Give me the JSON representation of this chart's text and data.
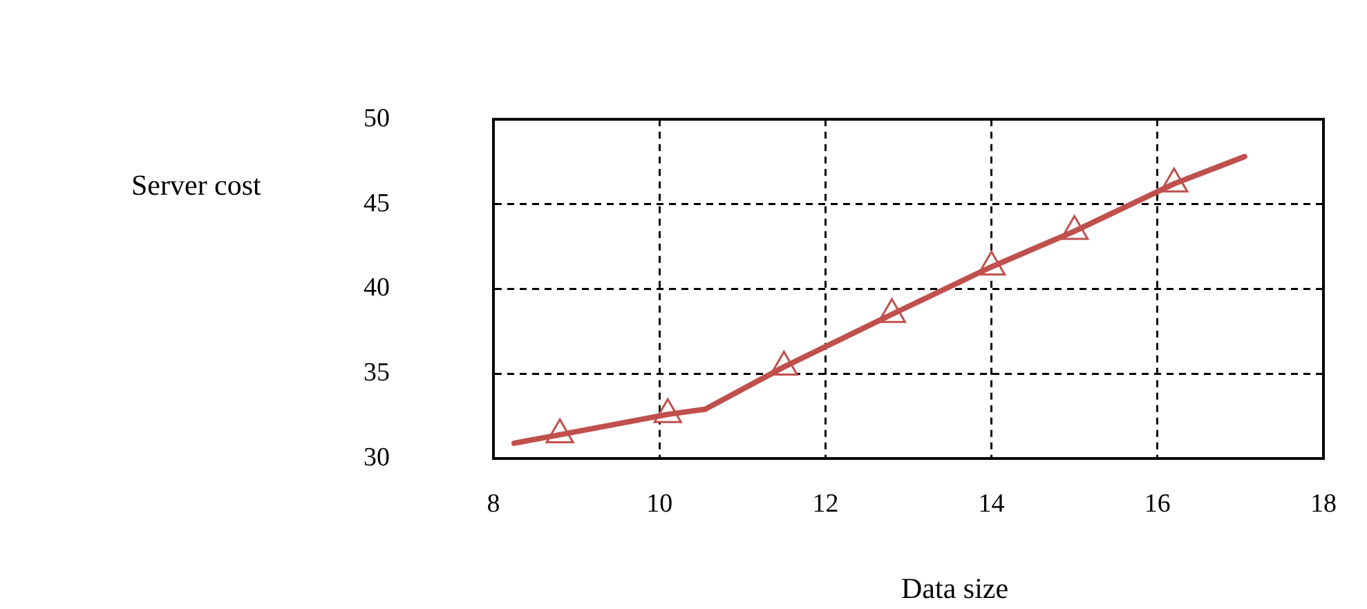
{
  "chart_data": {
    "type": "line",
    "xlabel": "Data size",
    "ylabel": "Server cost",
    "x": [
      8.25,
      8.8,
      10.1,
      10.55,
      11.5,
      12.8,
      14.0,
      15.0,
      16.2,
      17.05
    ],
    "series": [
      {
        "color": "#c0504d",
        "marker": "none",
        "values": [
          30.9,
          31.4,
          32.6,
          32.9,
          35.4,
          38.5,
          41.3,
          43.4,
          46.2,
          47.8
        ]
      },
      {
        "type": "scatter",
        "color": "#c0504d",
        "x": [
          8.8,
          10.1,
          11.5,
          12.8,
          14.0,
          15.0,
          16.2
        ],
        "values": [
          31.4,
          32.6,
          35.4,
          38.5,
          41.3,
          43.4,
          46.2
        ]
      }
    ],
    "xlim": [
      8,
      18
    ],
    "xticks": [
      8,
      10,
      12,
      14,
      16,
      18
    ],
    "ylim": [
      30,
      50
    ],
    "yticks": [
      30,
      35,
      40,
      45,
      50
    ],
    "grid": true,
    "legend": false,
    "marker": "triangle",
    "line_style": "solid"
  }
}
